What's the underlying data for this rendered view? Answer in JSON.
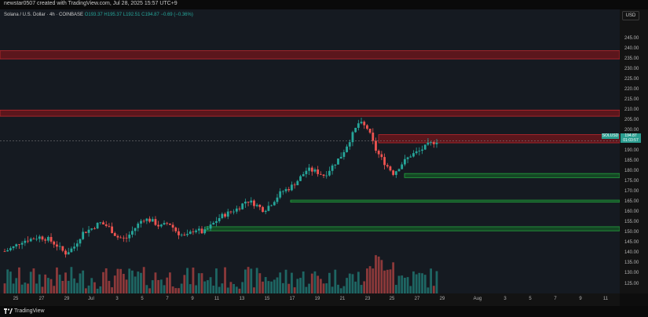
{
  "header": {
    "watermark": "newstar0507 created with TradingView.com, Jul 28, 2025 15:57 UTC+9"
  },
  "legend": {
    "symbol": "Solana / U.S. Dollar · 4h · COINBASE",
    "ohlc": "O193.37 H195.37 L192.51 C194.87 −0.69 (−0.36%)"
  },
  "price_axis": {
    "currency": "USD",
    "labels": [
      "245.00",
      "240.00",
      "235.00",
      "230.00",
      "225.00",
      "220.00",
      "215.00",
      "210.00",
      "205.00",
      "200.00",
      "195.00",
      "190.00",
      "185.00",
      "180.00",
      "175.00",
      "170.00",
      "165.00",
      "160.00",
      "155.00",
      "150.00",
      "145.00",
      "140.00",
      "135.00",
      "130.00",
      "125.00"
    ],
    "last_price": "194.87",
    "last_price_sub": "01:03:57",
    "symbol_tag": "SOLUSD"
  },
  "time_axis": {
    "labels": [
      "25",
      "27",
      "29",
      "Jul",
      "3",
      "5",
      "7",
      "9",
      "11",
      "13",
      "15",
      "17",
      "19",
      "21",
      "23",
      "25",
      "27",
      "29",
      "Aug",
      "3",
      "5",
      "7",
      "9",
      "11"
    ]
  },
  "footer": {
    "brand": "TradingView"
  },
  "colors": {
    "up": "#26a69a",
    "down": "#ef5350",
    "red_zone": "#c0282e",
    "green_zone": "#25a33f"
  },
  "chart_data": {
    "type": "candlestick",
    "title": "Solana / U.S. Dollar · 4h · COINBASE",
    "ylim": [
      120,
      248
    ],
    "resistance_zones": [
      [
        235,
        239
      ],
      [
        207,
        210
      ],
      [
        194,
        198
      ]
    ],
    "support_zones": [
      [
        177,
        179
      ],
      [
        165,
        166
      ],
      [
        151,
        153
      ]
    ],
    "series": [
      {
        "name": "SOLUSD",
        "close": [
          141,
          143,
          146,
          147,
          148,
          147,
          144,
          140,
          143,
          150,
          152,
          155,
          153,
          148,
          147,
          152,
          157,
          156,
          153,
          155,
          150,
          148,
          152,
          150,
          154,
          158,
          160,
          162,
          166,
          164,
          161,
          165,
          170,
          172,
          176,
          181,
          180,
          178,
          183,
          188,
          196,
          204,
          201,
          190,
          184,
          179,
          184,
          188,
          190,
          193,
          195
        ]
      }
    ]
  }
}
